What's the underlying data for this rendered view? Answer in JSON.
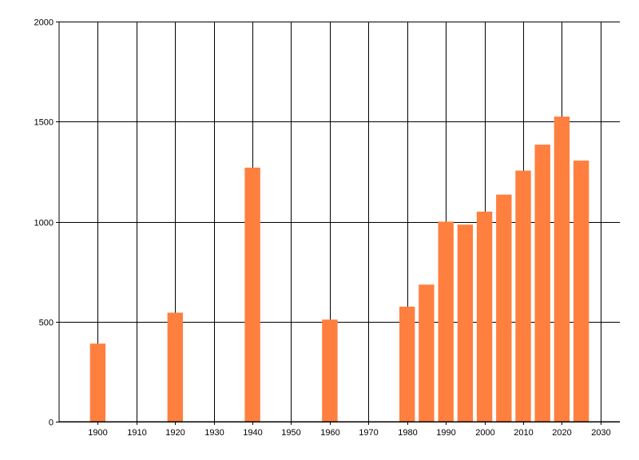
{
  "chart_data": {
    "type": "bar",
    "x": [
      1900,
      1920,
      1940,
      1960,
      1980,
      1985,
      1990,
      1995,
      2000,
      2005,
      2010,
      2015,
      2020,
      2025
    ],
    "values": [
      390,
      545,
      1270,
      510,
      575,
      685,
      1000,
      985,
      1050,
      1135,
      1255,
      1385,
      1525,
      1305
    ],
    "xlim": [
      1890,
      2035
    ],
    "ylim": [
      0,
      2000
    ],
    "x_ticks": [
      "1900",
      "1910",
      "1920",
      "1930",
      "1940",
      "1950",
      "1960",
      "1970",
      "1980",
      "1990",
      "2000",
      "2010",
      "2020",
      "2030"
    ],
    "y_ticks": [
      "0",
      "500",
      "1000",
      "1500",
      "2000"
    ],
    "grid": true,
    "bar_color": "#ff7f3f",
    "title": "",
    "xlabel": "",
    "ylabel": ""
  }
}
